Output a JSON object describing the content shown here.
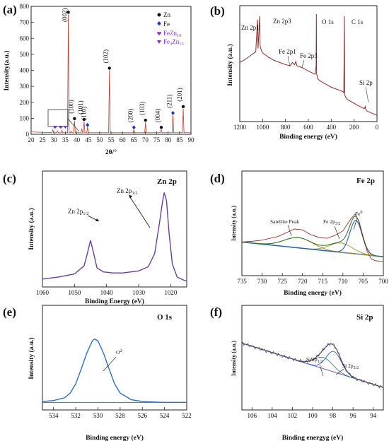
{
  "panels": {
    "a": {
      "label": "(a)",
      "xlabel": "2θ/°",
      "ylabel": "Intensity(a.u.)",
      "xticks": [
        "20",
        "25",
        "30",
        "35",
        "40",
        "45",
        "50",
        "55",
        "60",
        "65",
        "70",
        "75",
        "80",
        "85",
        "90"
      ],
      "yticks": [
        "0",
        "100",
        "200",
        "300",
        "400",
        "500",
        "600",
        "700",
        "800"
      ],
      "legend": [
        {
          "label": "Zn",
          "color": "#111111",
          "marker": "circle"
        },
        {
          "label": "Fe",
          "color": "#1f2fd8",
          "marker": "diamond"
        },
        {
          "label": "FeZn10",
          "color": "#8a2be2",
          "marker": "heart"
        },
        {
          "label": "Fe3Zn13",
          "color": "#8a2be2",
          "marker": "triangle-down"
        }
      ],
      "peak_labels": [
        "(002)",
        "(100)",
        "(101)",
        "(110)",
        "(102)",
        "(200)",
        "(103)",
        "(004)",
        "(211)",
        "(201)"
      ]
    },
    "b": {
      "label": "(b)",
      "xlabel": "Binding energy (eV)",
      "ylabel": "Intensity (a.u.)",
      "xticks": [
        "1200",
        "1000",
        "800",
        "600",
        "400",
        "200",
        "0"
      ],
      "annotations": [
        "Zn 2p1",
        "Zn 2p3",
        "O 1s",
        "C 1s",
        "Fe 2p1",
        "Fe 2p3",
        "Si 2p"
      ]
    },
    "c": {
      "label": "(c)",
      "title": "Zn 2p",
      "xlabel": "Binding Energy (eV)",
      "ylabel": "Intensity (a.u.)",
      "xticks": [
        "1060",
        "1050",
        "1040",
        "1030",
        "1020"
      ],
      "annotations": [
        "Zn 2p1/2",
        "Zn 2p3/2"
      ]
    },
    "d": {
      "label": "(d)",
      "title": "Fe 2p",
      "xlabel": "Binding energy (eV)",
      "ylabel": "Intensity (a.u.)",
      "xticks": [
        "735",
        "730",
        "725",
        "720",
        "715",
        "710",
        "705",
        "700"
      ],
      "annotations": [
        "Satellite Peak",
        "Fe 2p3/2",
        "Fe0"
      ]
    },
    "e": {
      "label": "(e)",
      "title": "O 1s",
      "xlabel": "Binding energy (eV)",
      "ylabel": "Intensity (a.u.)",
      "xticks": [
        "534",
        "532",
        "530",
        "528",
        "526",
        "524",
        "522"
      ],
      "annotations": [
        "O2-"
      ]
    },
    "f": {
      "label": "(f)",
      "title": "Si 2p",
      "xlabel": "Binding energyg (eV)",
      "ylabel": "Intensity (a.u.)",
      "xticks": [
        "106",
        "104",
        "102",
        "100",
        "98",
        "96",
        "94"
      ],
      "annotations": [
        "Si 2p1/2",
        "Si 2p3/2"
      ]
    }
  },
  "chart_data": [
    {
      "panel": "a",
      "type": "line",
      "xlim": [
        20,
        90
      ],
      "ylim": [
        0,
        800
      ],
      "peaks": [
        {
          "x": 36.3,
          "y": 750,
          "label": "(002)",
          "phase": "Zn"
        },
        {
          "x": 39.0,
          "y": 85,
          "label": "(100)",
          "phase": "Zn"
        },
        {
          "x": 43.2,
          "y": 80,
          "label": "(101)",
          "phase": "Zn"
        },
        {
          "x": 44.7,
          "y": 45,
          "label": "(110)",
          "phase": "Fe"
        },
        {
          "x": 54.3,
          "y": 400,
          "label": "(102)",
          "phase": "Zn"
        },
        {
          "x": 65.0,
          "y": 30,
          "label": "(200)",
          "phase": "Fe"
        },
        {
          "x": 70.1,
          "y": 75,
          "label": "(103)",
          "phase": "Zn"
        },
        {
          "x": 77.0,
          "y": 30,
          "label": "(004)",
          "phase": "Zn"
        },
        {
          "x": 82.1,
          "y": 120,
          "label": "(211)",
          "phase": "Fe"
        },
        {
          "x": 86.6,
          "y": 160,
          "label": "(201)",
          "phase": "Zn"
        }
      ],
      "baseline": 10
    },
    {
      "panel": "b",
      "type": "line",
      "xlim": [
        1200,
        0
      ],
      "x": [
        1200,
        1150,
        1100,
        1060,
        1045,
        1040,
        1025,
        1022,
        1010,
        1000,
        950,
        900,
        850,
        800,
        760,
        740,
        720,
        710,
        700,
        650,
        600,
        560,
        540,
        532,
        530,
        528,
        520,
        500,
        450,
        400,
        350,
        300,
        290,
        285,
        283,
        270,
        250,
        200,
        150,
        110,
        102,
        100,
        90,
        50,
        0
      ],
      "y": [
        0.55,
        0.58,
        0.62,
        0.65,
        0.95,
        0.68,
        0.98,
        0.7,
        0.66,
        0.64,
        0.6,
        0.57,
        0.55,
        0.53,
        0.52,
        0.55,
        0.53,
        0.56,
        0.52,
        0.5,
        0.47,
        0.45,
        0.44,
        0.52,
        1.0,
        0.45,
        0.4,
        0.38,
        0.35,
        0.32,
        0.3,
        0.28,
        0.27,
        0.98,
        0.25,
        0.22,
        0.2,
        0.17,
        0.14,
        0.12,
        0.14,
        0.12,
        0.1,
        0.08,
        0.06
      ]
    },
    {
      "panel": "c",
      "type": "line",
      "xlim": [
        1060,
        1015
      ],
      "x": [
        1060,
        1055,
        1050,
        1047,
        1046,
        1045,
        1044,
        1043,
        1041,
        1038,
        1035,
        1030,
        1027,
        1025,
        1023.5,
        1022.5,
        1022,
        1021.3,
        1020.5,
        1019.5,
        1018,
        1016,
        1015
      ],
      "y": [
        0.05,
        0.07,
        0.1,
        0.18,
        0.3,
        0.43,
        0.3,
        0.16,
        0.12,
        0.11,
        0.11,
        0.13,
        0.17,
        0.3,
        0.6,
        0.82,
        0.9,
        0.82,
        0.5,
        0.2,
        0.07,
        0.04,
        0.03
      ]
    },
    {
      "panel": "d",
      "type": "line",
      "xlim": [
        735,
        700
      ],
      "x": [
        735,
        732,
        730,
        728,
        726,
        724,
        722,
        720,
        718,
        716,
        714,
        712,
        710,
        708,
        707,
        706,
        705,
        704,
        703,
        702,
        700
      ],
      "y": [
        0.3,
        0.31,
        0.32,
        0.34,
        0.36,
        0.4,
        0.44,
        0.43,
        0.38,
        0.35,
        0.34,
        0.37,
        0.42,
        0.55,
        0.6,
        0.52,
        0.35,
        0.2,
        0.12,
        0.1,
        0.09
      ],
      "series": [
        "experimental",
        "fit",
        "background",
        "satellite",
        "Fe 2p3/2",
        "Fe0"
      ]
    },
    {
      "panel": "e",
      "type": "line",
      "xlim": [
        535,
        522
      ],
      "x": [
        535,
        534,
        533,
        532.5,
        532,
        531.5,
        531,
        530.5,
        530.3,
        530,
        529.5,
        529,
        528.5,
        528,
        527,
        526,
        524,
        522
      ],
      "y": [
        0.03,
        0.04,
        0.07,
        0.12,
        0.22,
        0.38,
        0.55,
        0.68,
        0.7,
        0.68,
        0.55,
        0.38,
        0.22,
        0.12,
        0.05,
        0.03,
        0.02,
        0.02
      ],
      "baseline": 0.02
    },
    {
      "panel": "f",
      "type": "line",
      "xlim": [
        107,
        93
      ],
      "x": [
        107,
        105,
        103,
        101,
        100,
        99.3,
        99,
        98.5,
        98,
        97.5,
        97,
        96,
        95,
        94,
        93
      ],
      "y": [
        0.68,
        0.64,
        0.6,
        0.55,
        0.52,
        0.56,
        0.62,
        0.7,
        0.72,
        0.65,
        0.48,
        0.38,
        0.3,
        0.24,
        0.2
      ],
      "series": [
        "experimental",
        "fit",
        "background",
        "Si 2p1/2",
        "Si 2p3/2"
      ]
    }
  ]
}
